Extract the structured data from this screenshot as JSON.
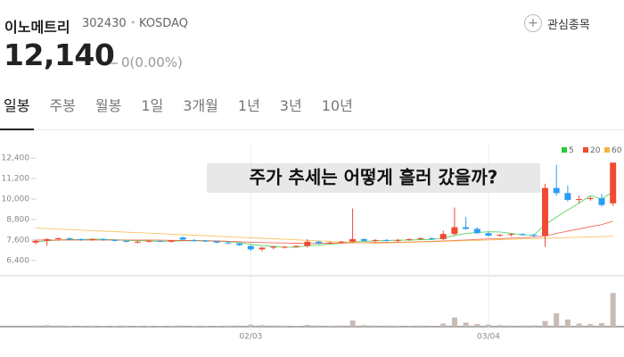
{
  "header": {
    "name": "이노메트리",
    "code": "302430",
    "market": "KOSDAQ",
    "watch": "관심종목",
    "price": "12,140",
    "change": "0(0.00%)"
  },
  "tabs": [
    "일봉",
    "주봉",
    "월봉",
    "1일",
    "3개월",
    "1년",
    "3년",
    "10년"
  ],
  "chart_data": {
    "type": "candlestick",
    "annotation": "주가 추세는 어떻게 흘러 갔을까?",
    "categories": [
      null,
      null,
      null,
      null,
      null,
      null,
      null,
      null,
      null,
      null,
      null,
      null,
      null,
      null,
      null,
      null,
      null,
      null,
      null,
      "02/03",
      null,
      null,
      null,
      null,
      null,
      null,
      null,
      null,
      null,
      null,
      null,
      null,
      null,
      null,
      null,
      null,
      null,
      null,
      null,
      null,
      "03/04",
      null,
      null,
      null,
      null,
      null,
      null,
      null,
      null,
      null,
      null,
      null
    ],
    "open": [
      7450,
      7550,
      7650,
      7700,
      7650,
      7600,
      7650,
      7600,
      7550,
      7450,
      7500,
      7550,
      7500,
      7750,
      7600,
      7560,
      7520,
      7450,
      7400,
      7250,
      7050,
      7150,
      7150,
      7200,
      7250,
      7500,
      7400,
      7450,
      7500,
      7650,
      7550,
      7600,
      7550,
      7600,
      7650,
      7700,
      7650,
      7950,
      8350,
      8250,
      8000,
      7850,
      7900,
      7950,
      7900,
      7850,
      10650,
      10350,
      9950,
      10000,
      10050,
      9750
    ],
    "high": [
      7600,
      7700,
      7750,
      7750,
      7700,
      7700,
      7700,
      7650,
      7600,
      7550,
      7600,
      7600,
      7600,
      7800,
      7650,
      7600,
      7560,
      7500,
      7420,
      7300,
      7200,
      7250,
      7250,
      7300,
      7650,
      7550,
      7500,
      7550,
      9450,
      7700,
      7650,
      7650,
      7650,
      7700,
      7750,
      7750,
      8150,
      9500,
      8950,
      8350,
      8100,
      7950,
      8000,
      8000,
      7950,
      10900,
      12000,
      10800,
      10200,
      10150,
      10300,
      12140
    ],
    "low": [
      7350,
      7250,
      7550,
      7600,
      7550,
      7550,
      7550,
      7500,
      7450,
      7400,
      7450,
      7480,
      7450,
      7600,
      7500,
      7480,
      7400,
      7350,
      7250,
      6950,
      6950,
      7050,
      7100,
      7150,
      7150,
      7350,
      7350,
      7400,
      7450,
      7500,
      7450,
      7500,
      7450,
      7550,
      7600,
      7600,
      7600,
      7850,
      8200,
      7950,
      7800,
      7800,
      7800,
      7850,
      7750,
      7200,
      10200,
      9850,
      9750,
      9900,
      9550,
      9600
    ],
    "close": [
      7550,
      7650,
      7700,
      7650,
      7600,
      7650,
      7600,
      7550,
      7500,
      7500,
      7550,
      7500,
      7580,
      7620,
      7560,
      7520,
      7450,
      7400,
      7300,
      7050,
      7150,
      7200,
      7200,
      7250,
      7500,
      7400,
      7450,
      7500,
      7650,
      7550,
      7600,
      7550,
      7600,
      7650,
      7700,
      7650,
      7950,
      8350,
      8250,
      8000,
      7850,
      7900,
      7950,
      7900,
      7850,
      10650,
      10350,
      9950,
      10000,
      10050,
      9650,
      12140
    ],
    "volume": [
      120000,
      150000,
      110000,
      90000,
      100000,
      95000,
      90000,
      85000,
      100000,
      90000,
      80000,
      85000,
      90000,
      110000,
      90000,
      85000,
      95000,
      100000,
      120000,
      200000,
      150000,
      110000,
      100000,
      95000,
      180000,
      120000,
      100000,
      110000,
      600000,
      150000,
      120000,
      110000,
      100000,
      100000,
      110000,
      100000,
      300000,
      900000,
      400000,
      250000,
      200000,
      150000,
      120000,
      110000,
      130000,
      550000,
      1300000,
      700000,
      300000,
      250000,
      350000,
      3300000
    ],
    "up_color": "#f04a33",
    "down_color": "#2b9ff2",
    "volume_color": "#c9bbb4",
    "series": [
      {
        "name": "5",
        "color": "#2ec93c",
        "values": [
          7500,
          7550,
          7600,
          7620,
          7630,
          7650,
          7640,
          7610,
          7580,
          7560,
          7540,
          7520,
          7530,
          7550,
          7550,
          7560,
          7530,
          7510,
          7450,
          7350,
          7270,
          7230,
          7180,
          7170,
          7260,
          7310,
          7360,
          7420,
          7500,
          7510,
          7550,
          7570,
          7590,
          7590,
          7620,
          7630,
          7710,
          7860,
          7980,
          8040,
          8080,
          8070,
          7990,
          7900,
          7890,
          8490,
          8940,
          9360,
          9760,
          10200,
          10000,
          10440
        ]
      },
      {
        "name": "20",
        "color": "#f04a33",
        "values": [
          7600,
          7600,
          7600,
          7600,
          7600,
          7600,
          7600,
          7600,
          7600,
          7600,
          7600,
          7590,
          7580,
          7570,
          7560,
          7550,
          7540,
          7520,
          7500,
          7470,
          7450,
          7430,
          7420,
          7410,
          7400,
          7400,
          7410,
          7420,
          7430,
          7440,
          7450,
          7460,
          7470,
          7480,
          7500,
          7520,
          7540,
          7570,
          7600,
          7630,
          7660,
          7680,
          7710,
          7730,
          7770,
          7820,
          7980,
          8120,
          8250,
          8380,
          8500,
          8700
        ]
      },
      {
        "name": "60",
        "color": "#f5b43c",
        "values": [
          8300,
          8270,
          8240,
          8210,
          8180,
          8150,
          8120,
          8090,
          8060,
          8030,
          8000,
          7970,
          7940,
          7910,
          7880,
          7850,
          7820,
          7790,
          7760,
          7730,
          7700,
          7670,
          7640,
          7610,
          7580,
          7550,
          7520,
          7490,
          7460,
          7430,
          7400,
          7420,
          7440,
          7460,
          7480,
          7500,
          7520,
          7540,
          7560,
          7580,
          7600,
          7620,
          7640,
          7660,
          7680,
          7700,
          7720,
          7740,
          7760,
          7780,
          7800,
          7820
        ]
      }
    ],
    "ylim": [
      5500,
      13300
    ],
    "yticks": [
      {
        "value": 6400,
        "label": "6,400"
      },
      {
        "value": 7600,
        "label": "7,600"
      },
      {
        "value": 8800,
        "label": "8,800"
      },
      {
        "value": 10000,
        "label": "10,000"
      },
      {
        "value": 11200,
        "label": "11,200"
      },
      {
        "value": 12400,
        "label": "12,400"
      }
    ],
    "volume_ylim": [
      0,
      3500000
    ]
  }
}
